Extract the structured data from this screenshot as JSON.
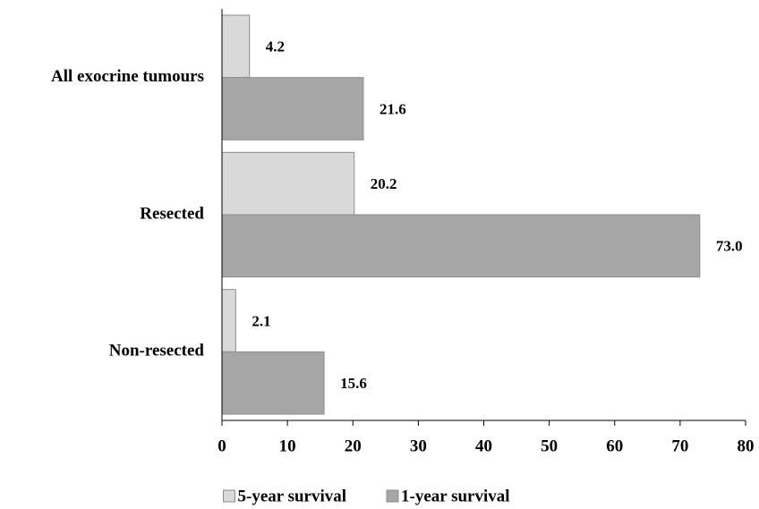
{
  "chart_data": {
    "type": "hbar",
    "categories": [
      "All exocrine tumours",
      "Resected",
      "Non-resected"
    ],
    "series": [
      {
        "name": "5-year survival",
        "color": "#d9d9d9",
        "values": [
          4.2,
          20.2,
          2.1
        ],
        "value_labels": [
          "4.2",
          "20.2",
          "2.1"
        ]
      },
      {
        "name": "1-year survival",
        "color": "#a6a6a6",
        "values": [
          21.6,
          73.0,
          15.6
        ],
        "value_labels": [
          "21.6",
          "73.0",
          "15.6"
        ]
      }
    ],
    "xlim": [
      0,
      80
    ],
    "xticks": [
      0,
      10,
      20,
      30,
      40,
      50,
      60,
      70,
      80
    ],
    "legend": "bottom"
  }
}
